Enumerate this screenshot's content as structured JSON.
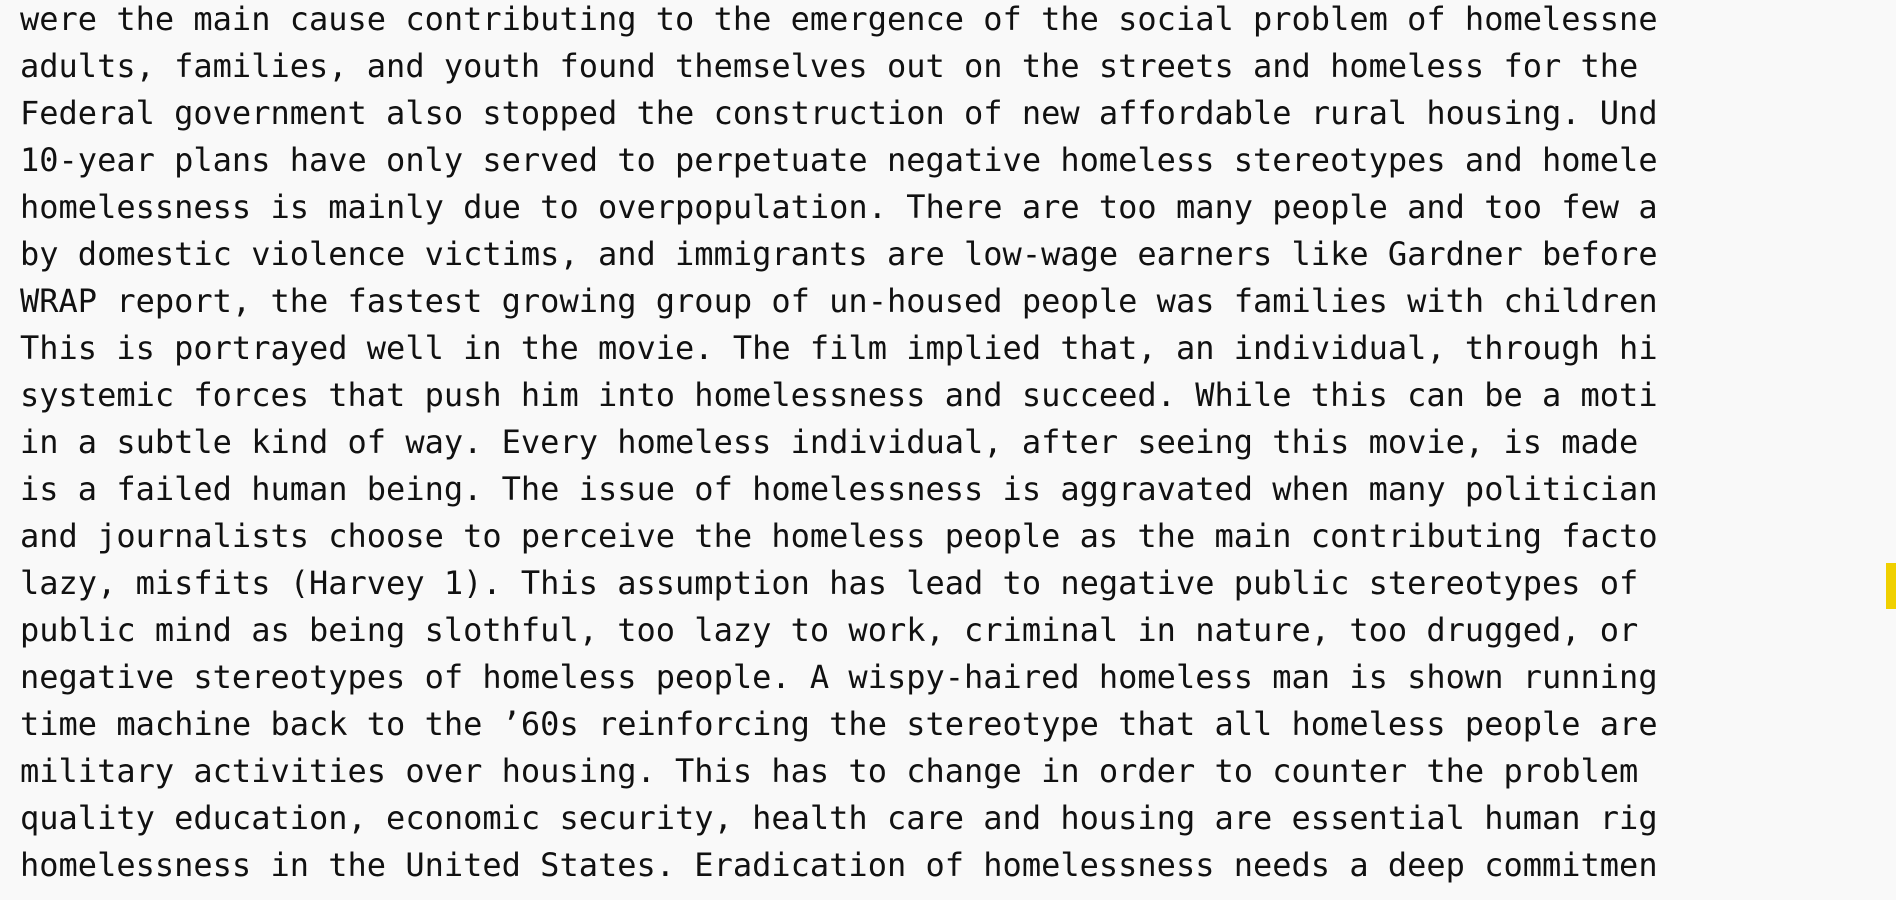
{
  "document": {
    "lines": [
      "were the main cause contributing to the emergence of the social problem of homelessne",
      "adults, families, and youth found themselves out on the streets and homeless for the",
      "Federal government also stopped the construction of new affordable rural housing. Und",
      "10-year plans have only served to perpetuate negative homeless stereotypes and homele",
      "homelessness is mainly due to overpopulation. There are too many people and too few a",
      "by domestic violence victims, and immigrants are low-wage earners like Gardner before",
      "WRAP report, the fastest growing group of un-housed people was families with children",
      "This is portrayed well in the movie. The film implied that, an individual, through hi",
      "systemic forces that push him into homelessness and succeed. While this can be a moti",
      "in a subtle kind of way. Every homeless individual, after seeing this movie, is made",
      "is a failed human being. The issue of homelessness is aggravated when many politician",
      "and journalists choose to perceive the homeless people as the main contributing facto",
      "lazy, misfits (Harvey 1). This assumption has lead to negative public stereotypes of",
      "public mind as being slothful, too lazy to work, criminal in nature, too drugged, or",
      "negative stereotypes of homeless people. A wispy-haired homeless man is shown running",
      "time machine back to the ’60s reinforcing the stereotype that all homeless people are",
      "military activities over housing. This has to change in order to counter the problem",
      "quality education, economic security, health care and housing are essential human rig",
      "homelessness in the United States. Eradication of homelessness needs a deep commitmen"
    ]
  },
  "colors": {
    "background": "#f9f9f9",
    "text": "#111111",
    "highlight": "#f0d000"
  }
}
